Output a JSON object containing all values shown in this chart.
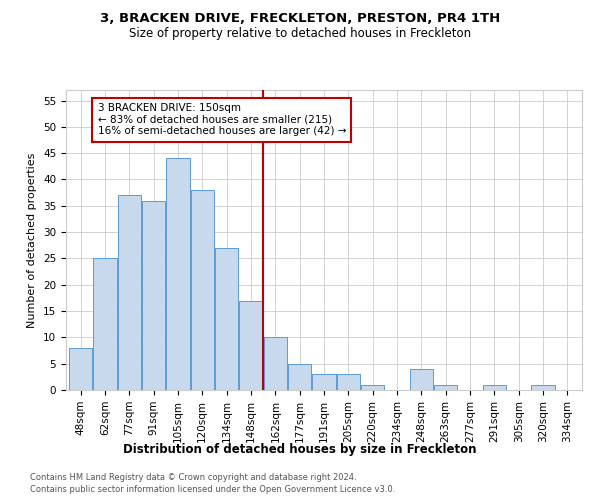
{
  "title1": "3, BRACKEN DRIVE, FRECKLETON, PRESTON, PR4 1TH",
  "title2": "Size of property relative to detached houses in Freckleton",
  "xlabel": "Distribution of detached houses by size in Freckleton",
  "ylabel": "Number of detached properties",
  "bar_values": [
    8,
    25,
    37,
    36,
    44,
    38,
    27,
    17,
    10,
    5,
    3,
    3,
    1,
    0,
    4,
    1,
    0,
    1,
    0,
    1,
    0
  ],
  "bar_labels": [
    "48sqm",
    "62sqm",
    "77sqm",
    "91sqm",
    "105sqm",
    "120sqm",
    "134sqm",
    "148sqm",
    "162sqm",
    "177sqm",
    "191sqm",
    "205sqm",
    "220sqm",
    "234sqm",
    "248sqm",
    "263sqm",
    "277sqm",
    "291sqm",
    "305sqm",
    "320sqm",
    "334sqm"
  ],
  "bar_color": "#c9d9ed",
  "bar_edge_color": "#5b9bd5",
  "ylim": [
    0,
    57
  ],
  "yticks": [
    0,
    5,
    10,
    15,
    20,
    25,
    30,
    35,
    40,
    45,
    50,
    55
  ],
  "vline_x": 7.5,
  "vline_color": "#c00000",
  "annotation_text": "3 BRACKEN DRIVE: 150sqm\n← 83% of detached houses are smaller (215)\n16% of semi-detached houses are larger (42) →",
  "annotation_box_color": "#c00000",
  "footer1": "Contains HM Land Registry data © Crown copyright and database right 2024.",
  "footer2": "Contains public sector information licensed under the Open Government Licence v3.0.",
  "bg_color": "#ffffff",
  "grid_color": "#cccccc",
  "title1_fontsize": 9.5,
  "title2_fontsize": 8.5,
  "xlabel_fontsize": 8.5,
  "ylabel_fontsize": 8,
  "tick_fontsize": 7.5,
  "footer_fontsize": 6.0
}
